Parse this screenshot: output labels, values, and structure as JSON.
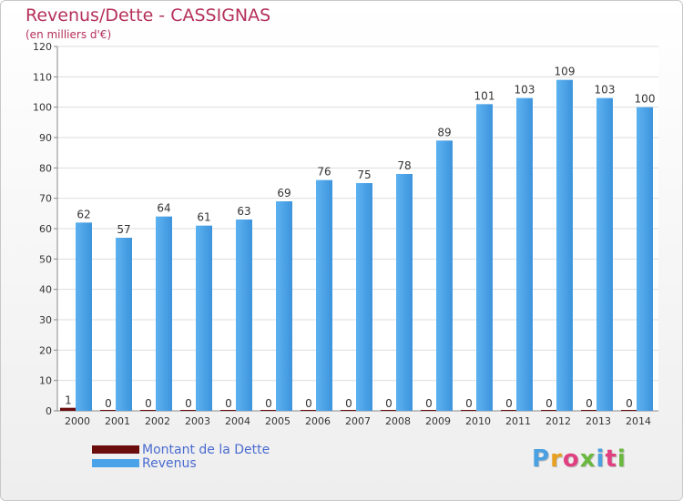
{
  "title": "Revenus/Dette - CASSIGNAS",
  "subtitle": "(en milliers d'€)",
  "logo_text": "Proxiti",
  "logo_colors": [
    "#4aa0e0",
    "#e8a020",
    "#e04080",
    "#6ab840",
    "#4aa0e0",
    "#e04080",
    "#6ab840"
  ],
  "chart_data": {
    "type": "bar",
    "title": "Revenus/Dette - CASSIGNAS",
    "subtitle": "(en milliers d'€)",
    "categories": [
      "2000",
      "2001",
      "2002",
      "2003",
      "2004",
      "2005",
      "2006",
      "2007",
      "2008",
      "2009",
      "2010",
      "2011",
      "2012",
      "2013",
      "2014"
    ],
    "series": [
      {
        "name": "Montant de la Dette",
        "color": "#6b0d0d",
        "values": [
          1,
          0,
          0,
          0,
          0,
          0,
          0,
          0,
          0,
          0,
          0,
          0,
          0,
          0,
          0
        ]
      },
      {
        "name": "Revenus",
        "color": "#4aa3e8",
        "values": [
          62,
          57,
          64,
          61,
          63,
          69,
          76,
          75,
          78,
          89,
          101,
          103,
          109,
          103,
          100
        ]
      }
    ],
    "ylim": [
      0,
      120
    ],
    "yticks": [
      0,
      10,
      20,
      30,
      40,
      50,
      60,
      70,
      80,
      90,
      100,
      110,
      120
    ],
    "grid": true,
    "legend_position": "bottom-left"
  }
}
